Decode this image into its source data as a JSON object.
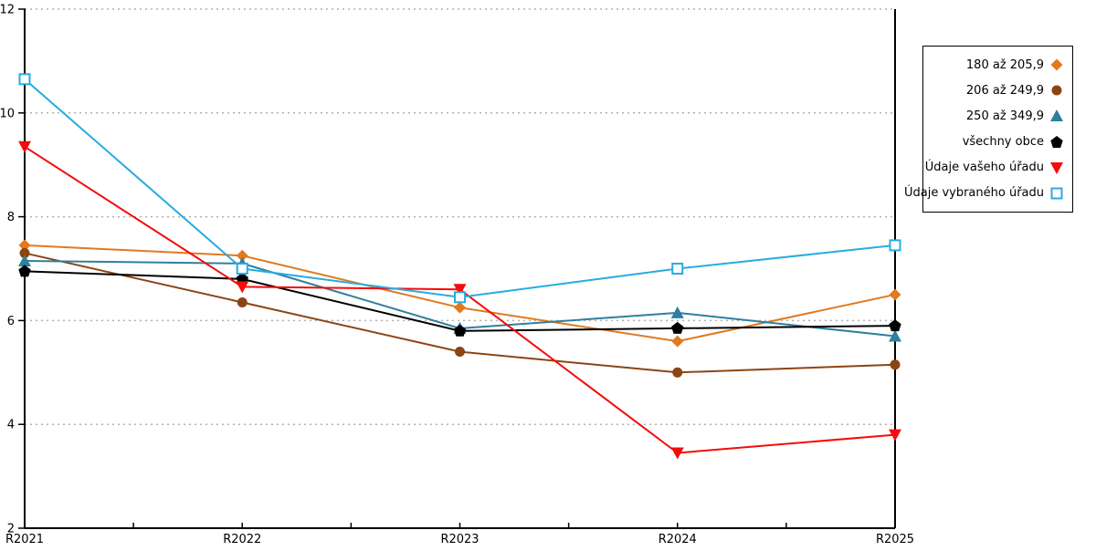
{
  "chart_data": {
    "type": "line",
    "title": "",
    "xlabel": "",
    "ylabel": "",
    "x_categories": [
      "R2021",
      "R2022",
      "R2023",
      "R2024",
      "R2025"
    ],
    "ylim": [
      2,
      12
    ],
    "y_ticks": [
      2,
      4,
      6,
      8,
      10,
      12
    ],
    "grid": "dotted horizontal gridlines at y ticks 4,6,8,10,12",
    "legend_position": "outside top-right, boxed",
    "axis_color": "#000000",
    "gridline_color": "#b0b0b0",
    "background": "#ffffff",
    "series": [
      {
        "name": "180 až 205,9",
        "color": "#e2791e",
        "marker": "diamond",
        "values": [
          7.45,
          7.25,
          6.25,
          5.6,
          6.5
        ]
      },
      {
        "name": "206 až 249,9",
        "color": "#8b4513",
        "marker": "circle",
        "values": [
          7.3,
          6.35,
          5.4,
          5.0,
          5.15
        ]
      },
      {
        "name": "250 až 349,9",
        "color": "#2f7f9d",
        "marker": "triangle-up",
        "values": [
          7.15,
          7.1,
          5.85,
          6.15,
          5.7
        ]
      },
      {
        "name": "všechny obce",
        "color": "#000000",
        "marker": "pentagon",
        "values": [
          6.95,
          6.8,
          5.8,
          5.85,
          5.9
        ]
      },
      {
        "name": "Údaje vašeho úřadu",
        "color": "#f40b0b",
        "marker": "triangle-down",
        "values": [
          9.35,
          6.65,
          6.6,
          3.45,
          3.8
        ]
      },
      {
        "name": "Údaje vybraného úřadu",
        "color": "#29abe2",
        "marker": "square-open",
        "values": [
          10.65,
          7.0,
          6.45,
          7.0,
          7.45
        ]
      }
    ]
  }
}
